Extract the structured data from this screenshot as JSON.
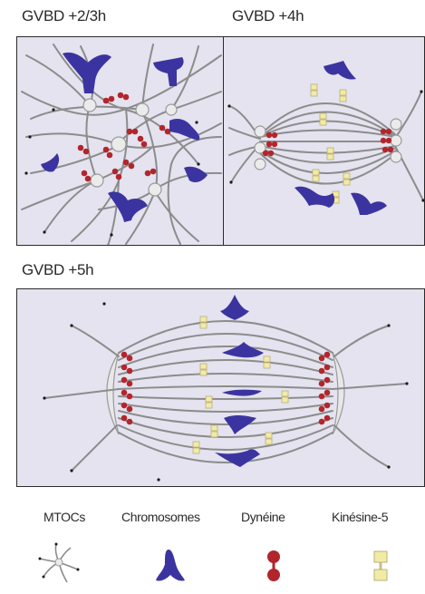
{
  "panels": {
    "top_left_title": "GVBD +2/3h",
    "top_right_title": "GVBD +4h",
    "bottom_title": "GVBD +5h"
  },
  "legend": {
    "mtocs": "MTOCs",
    "chromosomes": "Chromosomes",
    "dynein": "Dynéine",
    "kinesin": "Kinésine-5"
  },
  "colors": {
    "panel_background": "#e4e3ef",
    "chromosome": "#3b34a0",
    "dynein": "#b3252c",
    "kinesin": "#f2eba6",
    "microtubule": "#8a8a8a"
  }
}
